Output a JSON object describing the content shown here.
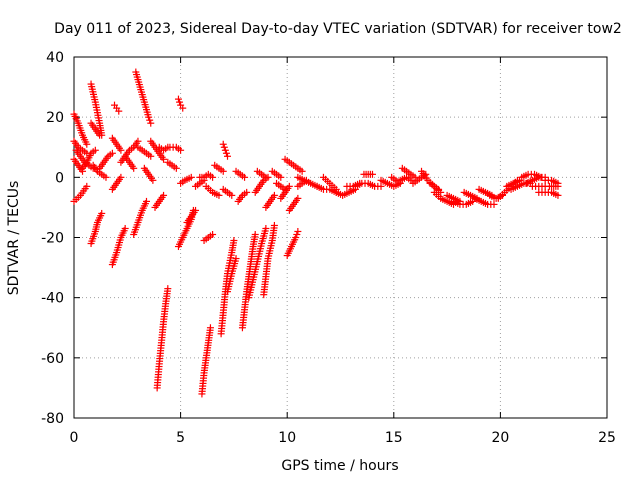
{
  "chart_data": {
    "type": "scatter",
    "title": "Day 011 of 2023, Sidereal Day-to-day VTEC variation (SDTVAR) for receiver tow2",
    "xlabel": "GPS time / hours",
    "ylabel": "SDTVAR / TECUs",
    "xlim": [
      0,
      25
    ],
    "ylim": [
      -80,
      40
    ],
    "x_ticks": [
      0,
      5,
      10,
      15,
      20,
      25
    ],
    "y_ticks": [
      -80,
      -60,
      -40,
      -20,
      0,
      20,
      40
    ],
    "x_tick_labels": [
      "0",
      "5",
      "10",
      "15",
      "20",
      "25"
    ],
    "y_tick_labels": [
      "-80",
      "-60",
      "-40",
      "-20",
      "0",
      "20",
      "40"
    ],
    "grid": true,
    "marker": "+",
    "series_color": "#ff0000",
    "tracks": [
      [
        [
          0.0,
          -8
        ],
        [
          0.3,
          -6
        ],
        [
          0.6,
          -3
        ]
      ],
      [
        [
          0.0,
          21
        ],
        [
          0.2,
          18
        ],
        [
          0.4,
          14
        ],
        [
          0.6,
          11
        ]
      ],
      [
        [
          0.0,
          12
        ],
        [
          0.2,
          10
        ],
        [
          0.4,
          9
        ],
        [
          0.6,
          8
        ]
      ],
      [
        [
          0.0,
          6
        ],
        [
          0.2,
          4
        ],
        [
          0.4,
          2
        ]
      ],
      [
        [
          0.1,
          9
        ],
        [
          0.3,
          7
        ],
        [
          0.5,
          5
        ],
        [
          0.7,
          4
        ],
        [
          0.9,
          3
        ]
      ],
      [
        [
          0.4,
          3
        ],
        [
          0.6,
          5
        ],
        [
          0.8,
          8
        ],
        [
          1.0,
          9
        ]
      ],
      [
        [
          0.8,
          31
        ],
        [
          1.0,
          25
        ],
        [
          1.2,
          18
        ],
        [
          1.3,
          14
        ]
      ],
      [
        [
          0.8,
          18
        ],
        [
          1.0,
          16
        ],
        [
          1.2,
          14
        ]
      ],
      [
        [
          0.8,
          -22
        ],
        [
          1.0,
          -18
        ],
        [
          1.1,
          -15
        ],
        [
          1.3,
          -12
        ]
      ],
      [
        [
          0.9,
          4
        ],
        [
          1.1,
          2
        ],
        [
          1.3,
          1
        ],
        [
          1.5,
          0
        ]
      ],
      [
        [
          1.2,
          3
        ],
        [
          1.4,
          5
        ],
        [
          1.6,
          7
        ],
        [
          1.8,
          8
        ]
      ],
      [
        [
          1.8,
          -29
        ],
        [
          2.0,
          -25
        ],
        [
          2.2,
          -20
        ],
        [
          2.4,
          -17
        ]
      ],
      [
        [
          1.8,
          -4
        ],
        [
          2.0,
          -2
        ],
        [
          2.2,
          0
        ]
      ],
      [
        [
          1.8,
          13
        ],
        [
          2.0,
          11
        ],
        [
          2.2,
          9
        ]
      ],
      [
        [
          1.9,
          24
        ],
        [
          2.0,
          23
        ],
        [
          2.1,
          22
        ]
      ],
      [
        [
          2.2,
          5
        ],
        [
          2.4,
          7
        ],
        [
          2.6,
          9
        ],
        [
          2.8,
          10
        ],
        [
          3.0,
          12
        ]
      ],
      [
        [
          2.4,
          7
        ],
        [
          2.6,
          5
        ],
        [
          2.8,
          3
        ]
      ],
      [
        [
          2.8,
          -19
        ],
        [
          3.0,
          -15
        ],
        [
          3.2,
          -11
        ],
        [
          3.4,
          -8
        ]
      ],
      [
        [
          2.9,
          35
        ],
        [
          3.1,
          30
        ],
        [
          3.3,
          25
        ],
        [
          3.5,
          20
        ],
        [
          3.6,
          18
        ]
      ],
      [
        [
          3.0,
          10
        ],
        [
          3.2,
          9
        ],
        [
          3.4,
          8
        ],
        [
          3.6,
          7
        ]
      ],
      [
        [
          3.3,
          3
        ],
        [
          3.5,
          1
        ],
        [
          3.7,
          -1
        ]
      ],
      [
        [
          3.6,
          12
        ],
        [
          3.8,
          10
        ],
        [
          4.0,
          8
        ],
        [
          4.2,
          6
        ]
      ],
      [
        [
          3.9,
          -70
        ],
        [
          4.0,
          -62
        ],
        [
          4.1,
          -55
        ],
        [
          4.2,
          -48
        ],
        [
          4.3,
          -42
        ],
        [
          4.4,
          -37
        ]
      ],
      [
        [
          3.8,
          -10
        ],
        [
          4.0,
          -8
        ],
        [
          4.2,
          -6
        ]
      ],
      [
        [
          4.0,
          10
        ],
        [
          4.2,
          9
        ],
        [
          4.4,
          10
        ]
      ],
      [
        [
          4.4,
          5
        ],
        [
          4.6,
          4
        ],
        [
          4.8,
          3
        ]
      ],
      [
        [
          4.5,
          10
        ],
        [
          4.8,
          10
        ],
        [
          5.0,
          9
        ]
      ],
      [
        [
          4.9,
          26
        ],
        [
          5.0,
          24
        ],
        [
          5.1,
          23
        ]
      ],
      [
        [
          4.9,
          -23
        ],
        [
          5.1,
          -20
        ],
        [
          5.3,
          -17
        ],
        [
          5.5,
          -14
        ],
        [
          5.6,
          -11
        ]
      ],
      [
        [
          5.0,
          -2
        ],
        [
          5.2,
          -1
        ],
        [
          5.5,
          0
        ]
      ],
      [
        [
          5.3,
          -15
        ],
        [
          5.5,
          -13
        ],
        [
          5.7,
          -11
        ]
      ],
      [
        [
          5.7,
          -3
        ],
        [
          5.9,
          -2
        ],
        [
          6.1,
          -1
        ]
      ],
      [
        [
          6.0,
          -72
        ],
        [
          6.1,
          -65
        ],
        [
          6.2,
          -60
        ],
        [
          6.3,
          -55
        ],
        [
          6.4,
          -50
        ]
      ],
      [
        [
          5.9,
          0
        ],
        [
          6.1,
          0
        ],
        [
          6.3,
          1
        ],
        [
          6.5,
          0
        ]
      ],
      [
        [
          6.1,
          -21
        ],
        [
          6.3,
          -20
        ],
        [
          6.5,
          -19
        ]
      ],
      [
        [
          6.2,
          -3
        ],
        [
          6.5,
          -5
        ],
        [
          6.8,
          -6
        ]
      ],
      [
        [
          6.6,
          4
        ],
        [
          6.8,
          3
        ],
        [
          7.0,
          2
        ]
      ],
      [
        [
          6.9,
          -52
        ],
        [
          7.0,
          -45
        ],
        [
          7.1,
          -38
        ],
        [
          7.2,
          -32
        ],
        [
          7.4,
          -25
        ],
        [
          7.5,
          -21
        ]
      ],
      [
        [
          7.0,
          11
        ],
        [
          7.1,
          9
        ],
        [
          7.2,
          7
        ]
      ],
      [
        [
          7.0,
          -4
        ],
        [
          7.2,
          -5
        ],
        [
          7.4,
          -6
        ]
      ],
      [
        [
          7.2,
          -38
        ],
        [
          7.4,
          -32
        ],
        [
          7.6,
          -27
        ]
      ],
      [
        [
          7.6,
          2
        ],
        [
          7.8,
          1
        ],
        [
          8.0,
          0
        ]
      ],
      [
        [
          7.7,
          -8
        ],
        [
          7.9,
          -6
        ],
        [
          8.1,
          -5
        ]
      ],
      [
        [
          7.9,
          -50
        ],
        [
          8.0,
          -44
        ],
        [
          8.1,
          -38
        ],
        [
          8.2,
          -33
        ],
        [
          8.3,
          -28
        ],
        [
          8.4,
          -23
        ],
        [
          8.5,
          -19
        ]
      ],
      [
        [
          8.2,
          -40
        ],
        [
          8.4,
          -34
        ],
        [
          8.6,
          -28
        ],
        [
          8.8,
          -22
        ],
        [
          9.0,
          -17
        ]
      ],
      [
        [
          8.5,
          -5
        ],
        [
          8.7,
          -3
        ],
        [
          8.9,
          -1
        ],
        [
          9.1,
          0
        ]
      ],
      [
        [
          8.6,
          2
        ],
        [
          8.8,
          1
        ],
        [
          9.0,
          0
        ]
      ],
      [
        [
          8.9,
          -39
        ],
        [
          9.0,
          -33
        ],
        [
          9.1,
          -27
        ],
        [
          9.3,
          -21
        ],
        [
          9.4,
          -16
        ]
      ],
      [
        [
          9.0,
          -10
        ],
        [
          9.2,
          -8
        ],
        [
          9.4,
          -6
        ]
      ],
      [
        [
          9.3,
          2
        ],
        [
          9.5,
          1
        ],
        [
          9.7,
          0
        ]
      ],
      [
        [
          9.5,
          -2
        ],
        [
          9.7,
          -3
        ],
        [
          9.9,
          -4
        ]
      ],
      [
        [
          9.7,
          -7
        ],
        [
          9.9,
          -5
        ],
        [
          10.1,
          -3
        ]
      ],
      [
        [
          9.9,
          6
        ],
        [
          10.1,
          5
        ],
        [
          10.3,
          4
        ],
        [
          10.5,
          3
        ],
        [
          10.7,
          2
        ]
      ],
      [
        [
          10.0,
          -26
        ],
        [
          10.2,
          -23
        ],
        [
          10.4,
          -20
        ],
        [
          10.5,
          -18
        ]
      ],
      [
        [
          10.1,
          -11
        ],
        [
          10.3,
          -9
        ],
        [
          10.5,
          -7
        ]
      ],
      [
        [
          10.5,
          -3
        ],
        [
          10.7,
          -2
        ],
        [
          10.9,
          -1
        ]
      ],
      [
        [
          10.5,
          0
        ],
        [
          10.8,
          -1
        ],
        [
          11.1,
          -2
        ],
        [
          11.4,
          -3
        ]
      ],
      [
        [
          11.4,
          -3
        ],
        [
          11.7,
          -4
        ],
        [
          12.0,
          -4
        ],
        [
          12.3,
          -5
        ]
      ],
      [
        [
          11.7,
          0
        ],
        [
          12.0,
          -2
        ],
        [
          12.3,
          -4
        ]
      ],
      [
        [
          12.3,
          -5
        ],
        [
          12.6,
          -6
        ],
        [
          12.9,
          -5
        ],
        [
          13.2,
          -4
        ]
      ],
      [
        [
          12.8,
          -3
        ],
        [
          13.1,
          -3
        ],
        [
          13.4,
          -2
        ]
      ],
      [
        [
          13.2,
          -3
        ],
        [
          13.5,
          -2
        ],
        [
          13.8,
          -2
        ],
        [
          14.1,
          -3
        ],
        [
          14.4,
          -3
        ]
      ],
      [
        [
          13.6,
          1
        ],
        [
          13.8,
          1
        ],
        [
          14.0,
          1
        ]
      ],
      [
        [
          14.4,
          -1
        ],
        [
          14.7,
          -2
        ],
        [
          15.0,
          -3
        ],
        [
          15.3,
          -2
        ]
      ],
      [
        [
          14.9,
          0
        ],
        [
          15.1,
          -1
        ],
        [
          15.3,
          -2
        ]
      ],
      [
        [
          15.3,
          -1
        ],
        [
          15.6,
          0
        ],
        [
          15.8,
          -1
        ]
      ],
      [
        [
          15.4,
          3
        ],
        [
          15.6,
          2
        ],
        [
          15.8,
          1
        ],
        [
          16.0,
          0
        ]
      ],
      [
        [
          15.9,
          -2
        ],
        [
          16.1,
          -1
        ],
        [
          16.3,
          0
        ],
        [
          16.5,
          1
        ]
      ],
      [
        [
          16.3,
          2
        ],
        [
          16.6,
          -1
        ],
        [
          16.9,
          -3
        ],
        [
          17.2,
          -5
        ]
      ],
      [
        [
          16.7,
          -2
        ],
        [
          16.9,
          -3
        ],
        [
          17.1,
          -4
        ]
      ],
      [
        [
          16.9,
          -5
        ],
        [
          17.2,
          -7
        ],
        [
          17.5,
          -8
        ],
        [
          17.8,
          -9
        ]
      ],
      [
        [
          17.5,
          -6
        ],
        [
          17.8,
          -7
        ],
        [
          18.1,
          -8
        ]
      ],
      [
        [
          17.8,
          -8
        ],
        [
          18.1,
          -9
        ],
        [
          18.4,
          -9
        ],
        [
          18.7,
          -8
        ]
      ],
      [
        [
          18.3,
          -5
        ],
        [
          18.6,
          -6
        ],
        [
          18.9,
          -7
        ]
      ],
      [
        [
          18.8,
          -7
        ],
        [
          19.1,
          -8
        ],
        [
          19.4,
          -9
        ],
        [
          19.7,
          -9
        ]
      ],
      [
        [
          19.0,
          -4
        ],
        [
          19.3,
          -5
        ],
        [
          19.6,
          -6
        ]
      ],
      [
        [
          19.5,
          -6
        ],
        [
          19.8,
          -7
        ],
        [
          20.1,
          -6
        ]
      ],
      [
        [
          19.9,
          -7
        ],
        [
          20.2,
          -5
        ],
        [
          20.5,
          -3
        ],
        [
          20.8,
          -1
        ]
      ],
      [
        [
          20.3,
          -3
        ],
        [
          20.6,
          -2
        ],
        [
          20.9,
          -1
        ]
      ],
      [
        [
          20.5,
          -4
        ],
        [
          20.8,
          -3
        ],
        [
          21.1,
          -2
        ],
        [
          21.4,
          -2
        ]
      ],
      [
        [
          21.0,
          0
        ],
        [
          21.3,
          1
        ],
        [
          21.6,
          1
        ],
        [
          21.9,
          0
        ]
      ],
      [
        [
          21.2,
          -2
        ],
        [
          21.5,
          -1
        ],
        [
          21.8,
          0
        ],
        [
          22.1,
          0
        ]
      ],
      [
        [
          21.5,
          -3
        ],
        [
          21.8,
          -3
        ],
        [
          22.1,
          -3
        ]
      ],
      [
        [
          21.8,
          -5
        ],
        [
          22.1,
          -5
        ],
        [
          22.4,
          -5
        ],
        [
          22.7,
          -6
        ]
      ],
      [
        [
          22.1,
          -1
        ],
        [
          22.4,
          -1
        ],
        [
          22.7,
          -2
        ]
      ],
      [
        [
          22.3,
          -3
        ],
        [
          22.5,
          -3
        ],
        [
          22.7,
          -3
        ]
      ]
    ]
  }
}
